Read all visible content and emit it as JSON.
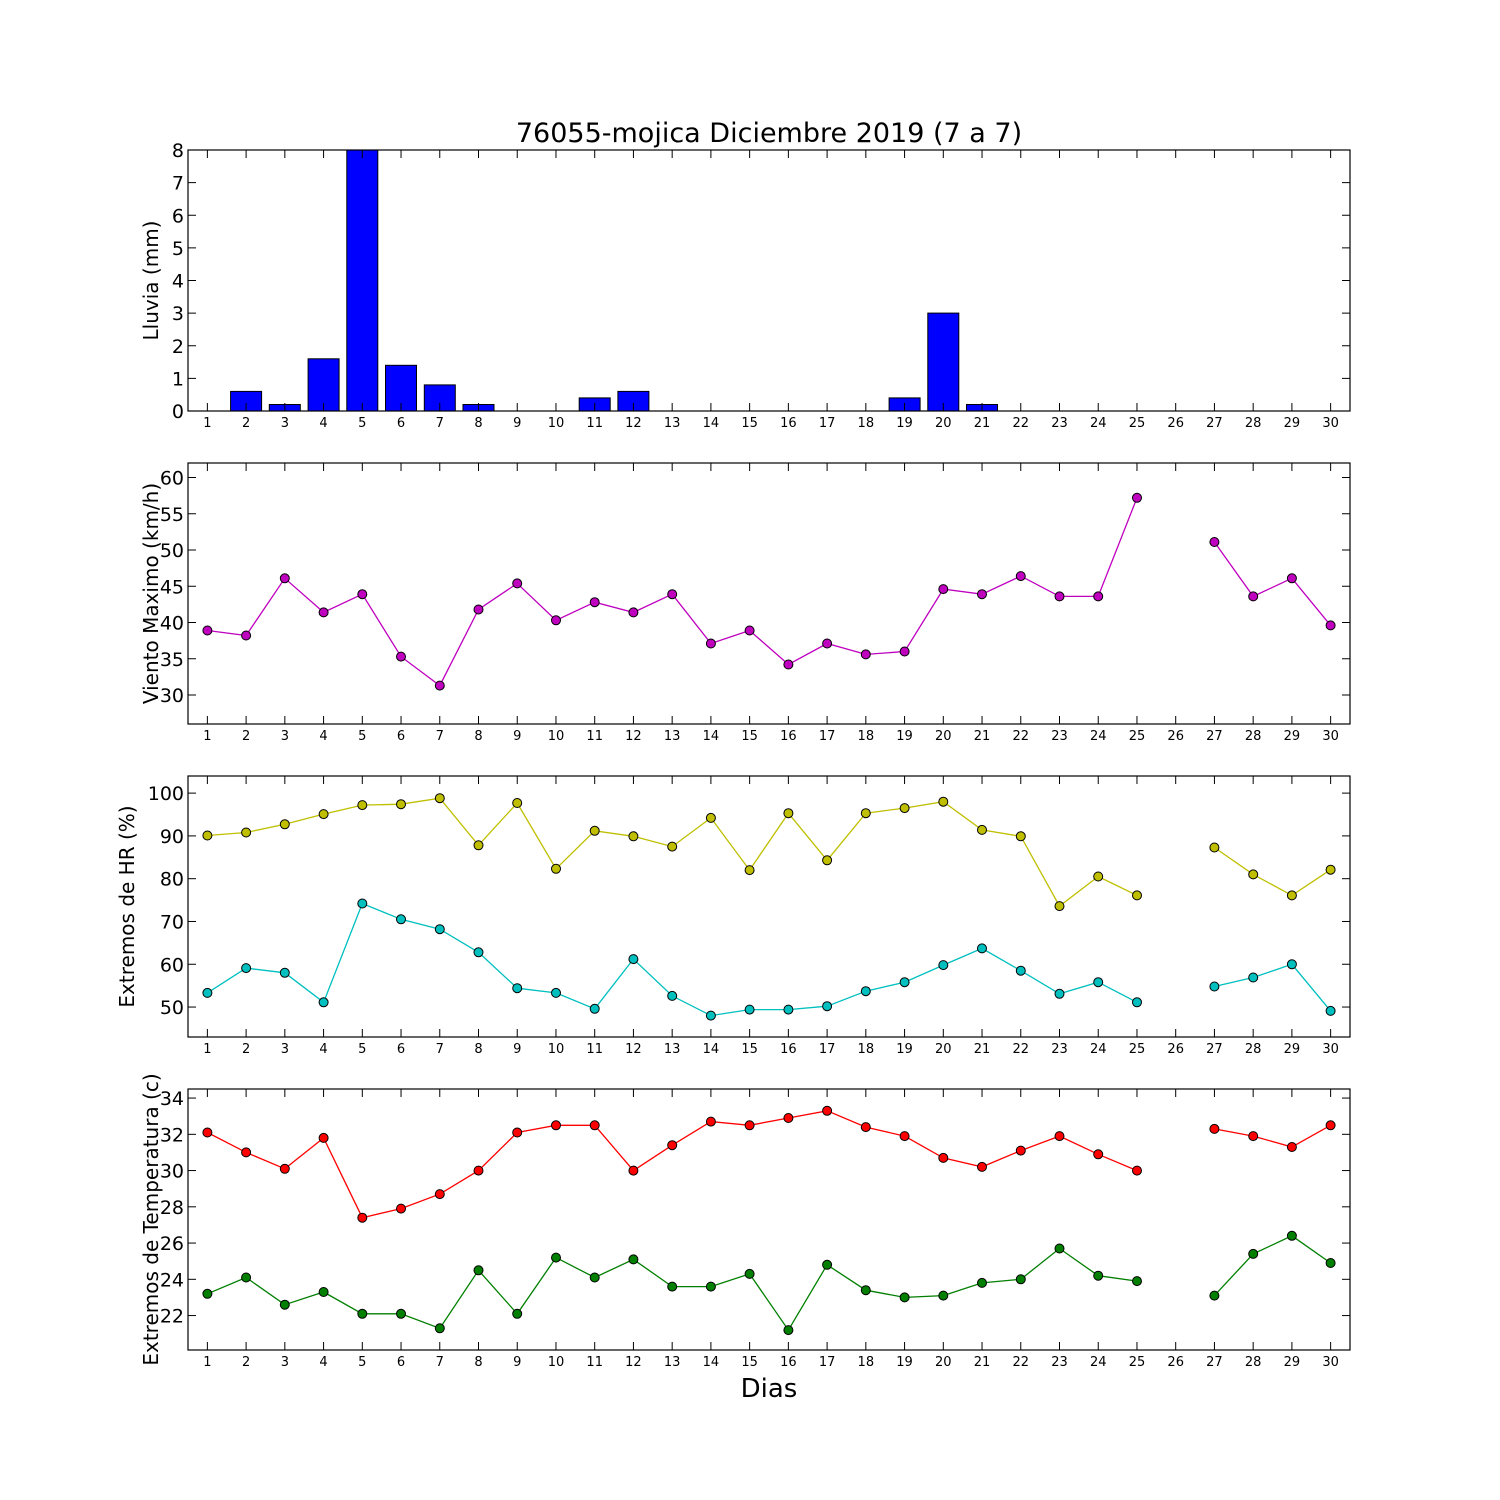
{
  "title": "76055-mojica Diciembre 2019  (7 a 7)",
  "xlabel": "Dias",
  "days": [
    1,
    2,
    3,
    4,
    5,
    6,
    7,
    8,
    9,
    10,
    11,
    12,
    13,
    14,
    15,
    16,
    17,
    18,
    19,
    20,
    21,
    22,
    23,
    24,
    25,
    26,
    27,
    28,
    29,
    30
  ],
  "chart_data": [
    {
      "type": "bar",
      "ylabel": "Lluvia (mm)",
      "ylim": [
        0,
        8
      ],
      "yticks": [
        0,
        1,
        2,
        3,
        4,
        5,
        6,
        7,
        8
      ],
      "grid": false,
      "series": [
        {
          "color": "#0000ff",
          "values": [
            0,
            0.6,
            0.2,
            1.6,
            8.0,
            1.4,
            0.8,
            0.2,
            0,
            0,
            0.4,
            0.6,
            0,
            0,
            0,
            0,
            0,
            0,
            0.4,
            3.0,
            0.2,
            0,
            0,
            0,
            0,
            0,
            0,
            0,
            0,
            0
          ]
        }
      ]
    },
    {
      "type": "line",
      "ylabel": "Viento Maximo (km/h)",
      "ylim": [
        26,
        62
      ],
      "yticks": [
        30,
        35,
        40,
        45,
        50,
        55,
        60
      ],
      "grid": false,
      "series": [
        {
          "color": "#bf00bf",
          "values": [
            38.9,
            38.2,
            46.1,
            41.4,
            43.9,
            35.3,
            31.3,
            41.8,
            45.4,
            40.3,
            42.8,
            41.4,
            43.9,
            37.1,
            38.9,
            34.2,
            37.1,
            35.6,
            36.0,
            44.6,
            43.9,
            46.4,
            43.6,
            43.6,
            57.2,
            null,
            51.1,
            43.6,
            46.1,
            39.6
          ]
        }
      ]
    },
    {
      "type": "line",
      "ylabel": "Extremos de HR (%)",
      "ylim": [
        43,
        104
      ],
      "yticks": [
        50,
        60,
        70,
        80,
        90,
        100
      ],
      "grid": false,
      "series": [
        {
          "color": "#bfbf00",
          "values": [
            90.1,
            90.8,
            92.7,
            95.1,
            97.2,
            97.4,
            98.8,
            87.8,
            97.7,
            82.3,
            91.2,
            89.9,
            87.5,
            94.2,
            82.0,
            95.3,
            84.3,
            95.3,
            96.5,
            98.0,
            91.4,
            89.9,
            73.6,
            80.5,
            76.1,
            null,
            87.3,
            81.0,
            76.1,
            82.1
          ]
        },
        {
          "color": "#00bfbf",
          "values": [
            53.3,
            59.1,
            58.0,
            51.1,
            74.2,
            70.5,
            68.2,
            62.8,
            54.4,
            53.3,
            49.6,
            61.2,
            52.6,
            48.0,
            49.4,
            49.4,
            50.2,
            53.7,
            55.8,
            59.8,
            63.7,
            58.5,
            53.1,
            55.8,
            51.1,
            null,
            54.8,
            56.9,
            60.0,
            49.1
          ]
        }
      ]
    },
    {
      "type": "line",
      "ylabel": "Extremos de Temperatura (c)",
      "ylim": [
        20.1,
        34.5
      ],
      "yticks": [
        22,
        24,
        26,
        28,
        30,
        32,
        34
      ],
      "grid": false,
      "series": [
        {
          "color": "#ff0000",
          "values": [
            32.1,
            31.0,
            30.1,
            31.8,
            27.4,
            27.9,
            28.7,
            30.0,
            32.1,
            32.5,
            32.5,
            30.0,
            31.4,
            32.7,
            32.5,
            32.9,
            33.3,
            32.4,
            31.9,
            30.7,
            30.2,
            31.1,
            31.9,
            30.9,
            30.0,
            null,
            32.3,
            31.9,
            31.3,
            32.5
          ]
        },
        {
          "color": "#007f00",
          "values": [
            23.2,
            24.1,
            22.6,
            23.3,
            22.1,
            22.1,
            21.3,
            24.5,
            22.1,
            25.2,
            24.1,
            25.1,
            23.6,
            23.6,
            24.3,
            21.2,
            24.8,
            23.4,
            23.0,
            23.1,
            23.8,
            24.0,
            25.7,
            24.2,
            23.9,
            null,
            23.1,
            25.4,
            26.4,
            24.9
          ]
        }
      ]
    }
  ]
}
